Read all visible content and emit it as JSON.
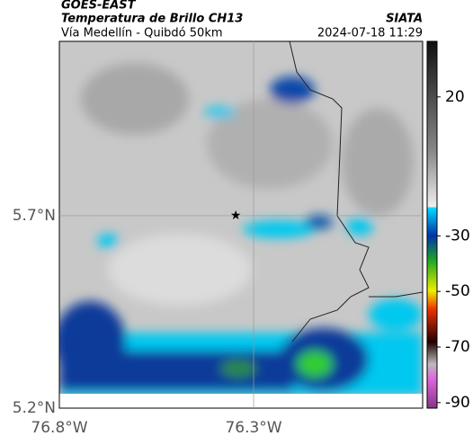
{
  "header": {
    "title": "GOES-EAST",
    "subtitle": "Temperatura de Brillo CH13",
    "source": "SIATA",
    "region": "Vía Medellín - Quibdó 50km",
    "timestamp": "2024-07-18 11:29"
  },
  "map": {
    "xlim": [
      -76.8,
      -75.865
    ],
    "ylim": [
      5.2,
      6.153
    ],
    "xticks": [
      {
        "value": -76.8,
        "label": "76.8°W"
      },
      {
        "value": -76.3,
        "label": "76.3°W"
      }
    ],
    "yticks": [
      {
        "value": 5.7,
        "label": "5.7°N"
      },
      {
        "value": 5.2,
        "label": "5.2°N"
      }
    ],
    "grid": true,
    "marker": {
      "lon": -76.346,
      "lat": 5.7
    }
  },
  "colorbar": {
    "lim": [
      40,
      -92
    ],
    "ticks": [
      20,
      -30,
      -50,
      -70,
      -90
    ]
  }
}
